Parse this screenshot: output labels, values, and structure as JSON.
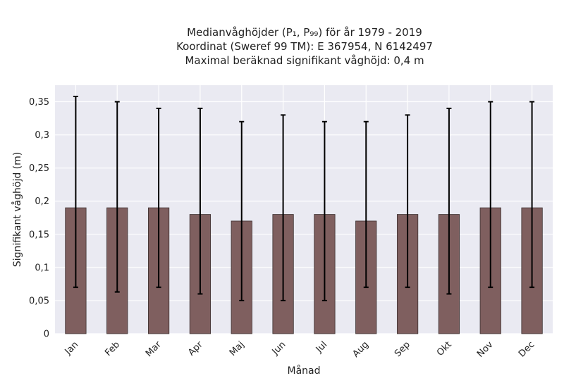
{
  "chart_data": {
    "type": "bar",
    "title": [
      "Medianvåghöjder (P₁, P₉₉) för år 1979 - 2019",
      "Koordinat (Sweref 99 TM): E 367954, N 6142497",
      "Maximal beräknad signifikant våghöjd: 0,4 m"
    ],
    "xlabel": "Månad",
    "ylabel": "Signifikant våghöjd (m)",
    "ylim": [
      0,
      0.375
    ],
    "yticks": [
      0,
      0.05,
      0.1,
      0.15,
      0.2,
      0.25,
      0.3,
      0.35
    ],
    "ytick_labels": [
      "0",
      "0,05",
      "0,1",
      "0,15",
      "0,2",
      "0,25",
      "0,3",
      "0,35"
    ],
    "categories": [
      "Jan",
      "Feb",
      "Mar",
      "Apr",
      "Maj",
      "Jun",
      "Jul",
      "Aug",
      "Sep",
      "Okt",
      "Nov",
      "Dec"
    ],
    "values": [
      0.19,
      0.19,
      0.19,
      0.18,
      0.17,
      0.18,
      0.18,
      0.17,
      0.18,
      0.18,
      0.19,
      0.19
    ],
    "error_low": [
      0.07,
      0.063,
      0.07,
      0.06,
      0.05,
      0.05,
      0.05,
      0.07,
      0.07,
      0.06,
      0.07,
      0.07
    ],
    "error_high": [
      0.358,
      0.35,
      0.34,
      0.34,
      0.32,
      0.33,
      0.32,
      0.32,
      0.33,
      0.34,
      0.35,
      0.35
    ],
    "bar_color": "#7f5f5f",
    "error_color": "#000000",
    "background": "#eaeaf2",
    "grid": true
  }
}
